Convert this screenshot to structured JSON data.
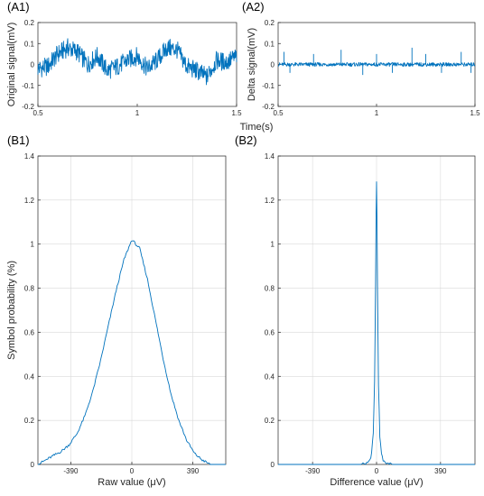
{
  "colors": {
    "line": "#0072BD",
    "axis": "#262626",
    "grid": "#d9d9d9"
  },
  "chart_data": [
    {
      "type": "line",
      "panel_label": "(A1)",
      "ylabel": "Original signal(mV)",
      "xlabel": "",
      "xlim": [
        0.5,
        1.5
      ],
      "ylim": [
        -0.2,
        0.2
      ],
      "xticks": [
        0.5,
        1,
        1.5
      ],
      "xtick_labels": [
        "0.5",
        "1",
        "1.5"
      ],
      "yticks": [
        -0.2,
        -0.1,
        0,
        0.1,
        0.2
      ],
      "ytick_labels": [
        "-0.2",
        "-0.1",
        "0",
        "0.1",
        "0.2"
      ],
      "grid": false,
      "series": [
        {
          "x": [
            0.5,
            0.55,
            0.6,
            0.65,
            0.7,
            0.75,
            0.8,
            0.85,
            0.9,
            0.95,
            1.0,
            1.05,
            1.1,
            1.15,
            1.2,
            1.25,
            1.3,
            1.35,
            1.4,
            1.45,
            1.5
          ],
          "values": [
            -0.02,
            -0.01,
            0.05,
            0.08,
            0.06,
            0.0,
            0.04,
            -0.03,
            -0.01,
            0.02,
            0.04,
            -0.02,
            0.02,
            0.08,
            0.07,
            -0.01,
            -0.03,
            -0.06,
            0.02,
            0.01,
            0.04
          ]
        }
      ]
    },
    {
      "type": "line",
      "panel_label": "(A2)",
      "ylabel": "Delta signal(mV)",
      "xlabel": "Time(s)",
      "xlim": [
        0.5,
        1.5
      ],
      "ylim": [
        -0.2,
        0.2
      ],
      "xticks": [
        0.5,
        1,
        1.5
      ],
      "xtick_labels": [
        "0.5",
        "1",
        "1.5"
      ],
      "yticks": [
        -0.2,
        -0.1,
        0,
        0.1,
        0.2
      ],
      "ytick_labels": [
        "-0.2",
        "-0.1",
        "0",
        "0.1",
        "0.2"
      ],
      "grid": false,
      "series": [
        {
          "x": [
            0.5,
            0.6,
            0.7,
            0.8,
            0.9,
            1.0,
            1.1,
            1.2,
            1.3,
            1.4,
            1.5
          ],
          "values": [
            0,
            0,
            0,
            0,
            0,
            0,
            0,
            0,
            0,
            0,
            0
          ],
          "spikes": [
            [
              0.53,
              0.06
            ],
            [
              0.56,
              -0.04
            ],
            [
              0.68,
              0.05
            ],
            [
              0.82,
              0.07
            ],
            [
              0.93,
              -0.05
            ],
            [
              1.0,
              0.05
            ],
            [
              1.08,
              -0.04
            ],
            [
              1.18,
              0.08
            ],
            [
              1.25,
              0.05
            ],
            [
              1.33,
              -0.04
            ],
            [
              1.43,
              0.06
            ],
            [
              1.48,
              -0.04
            ]
          ]
        }
      ]
    },
    {
      "type": "line",
      "panel_label": "(B1)",
      "ylabel": "Symbol probability (%)",
      "xlabel": "Raw value (μV)",
      "xlim": [
        -600,
        600
      ],
      "ylim": [
        0,
        1.4
      ],
      "xticks": [
        -390,
        0,
        390
      ],
      "xtick_labels": [
        "-390",
        "0",
        "390"
      ],
      "yticks": [
        0,
        0.2,
        0.4,
        0.6,
        0.8,
        1,
        1.2,
        1.4
      ],
      "ytick_labels": [
        "0",
        "0.2",
        "0.4",
        "0.6",
        "0.8",
        "1",
        "1.2",
        "1.4"
      ],
      "grid": true,
      "series": [
        {
          "x": [
            -600,
            -550,
            -500,
            -450,
            -400,
            -350,
            -300,
            -250,
            -200,
            -150,
            -100,
            -50,
            0,
            50,
            100,
            150,
            200,
            250,
            300,
            350,
            400,
            450,
            500,
            550,
            600
          ],
          "values": [
            0.0,
            0.02,
            0.04,
            0.06,
            0.09,
            0.14,
            0.22,
            0.33,
            0.47,
            0.63,
            0.79,
            0.93,
            1.02,
            0.98,
            0.84,
            0.66,
            0.48,
            0.32,
            0.2,
            0.11,
            0.05,
            0.02,
            0.0,
            0.0,
            0.0
          ]
        }
      ]
    },
    {
      "type": "line",
      "panel_label": "(B2)",
      "ylabel": "",
      "xlabel": "Difference value (μV)",
      "xlim": [
        -600,
        600
      ],
      "ylim": [
        0,
        1.4
      ],
      "xticks": [
        -390,
        0,
        390
      ],
      "xtick_labels": [
        "-390",
        "0",
        "390"
      ],
      "yticks": [
        0,
        0.2,
        0.4,
        0.6,
        0.8,
        1,
        1.2,
        1.4
      ],
      "ytick_labels": [
        "0",
        "0.2",
        "0.4",
        "0.6",
        "0.8",
        "1",
        "1.2",
        "1.4"
      ],
      "grid": true,
      "series": [
        {
          "x": [
            -600,
            -100,
            -60,
            -40,
            -30,
            -20,
            -12,
            -6,
            -3,
            0,
            3,
            6,
            12,
            20,
            30,
            40,
            60,
            100,
            600
          ],
          "values": [
            0,
            0,
            0.005,
            0.02,
            0.05,
            0.14,
            0.38,
            0.82,
            1.12,
            1.28,
            1.1,
            0.8,
            0.36,
            0.13,
            0.05,
            0.02,
            0.005,
            0,
            0
          ]
        }
      ]
    }
  ]
}
